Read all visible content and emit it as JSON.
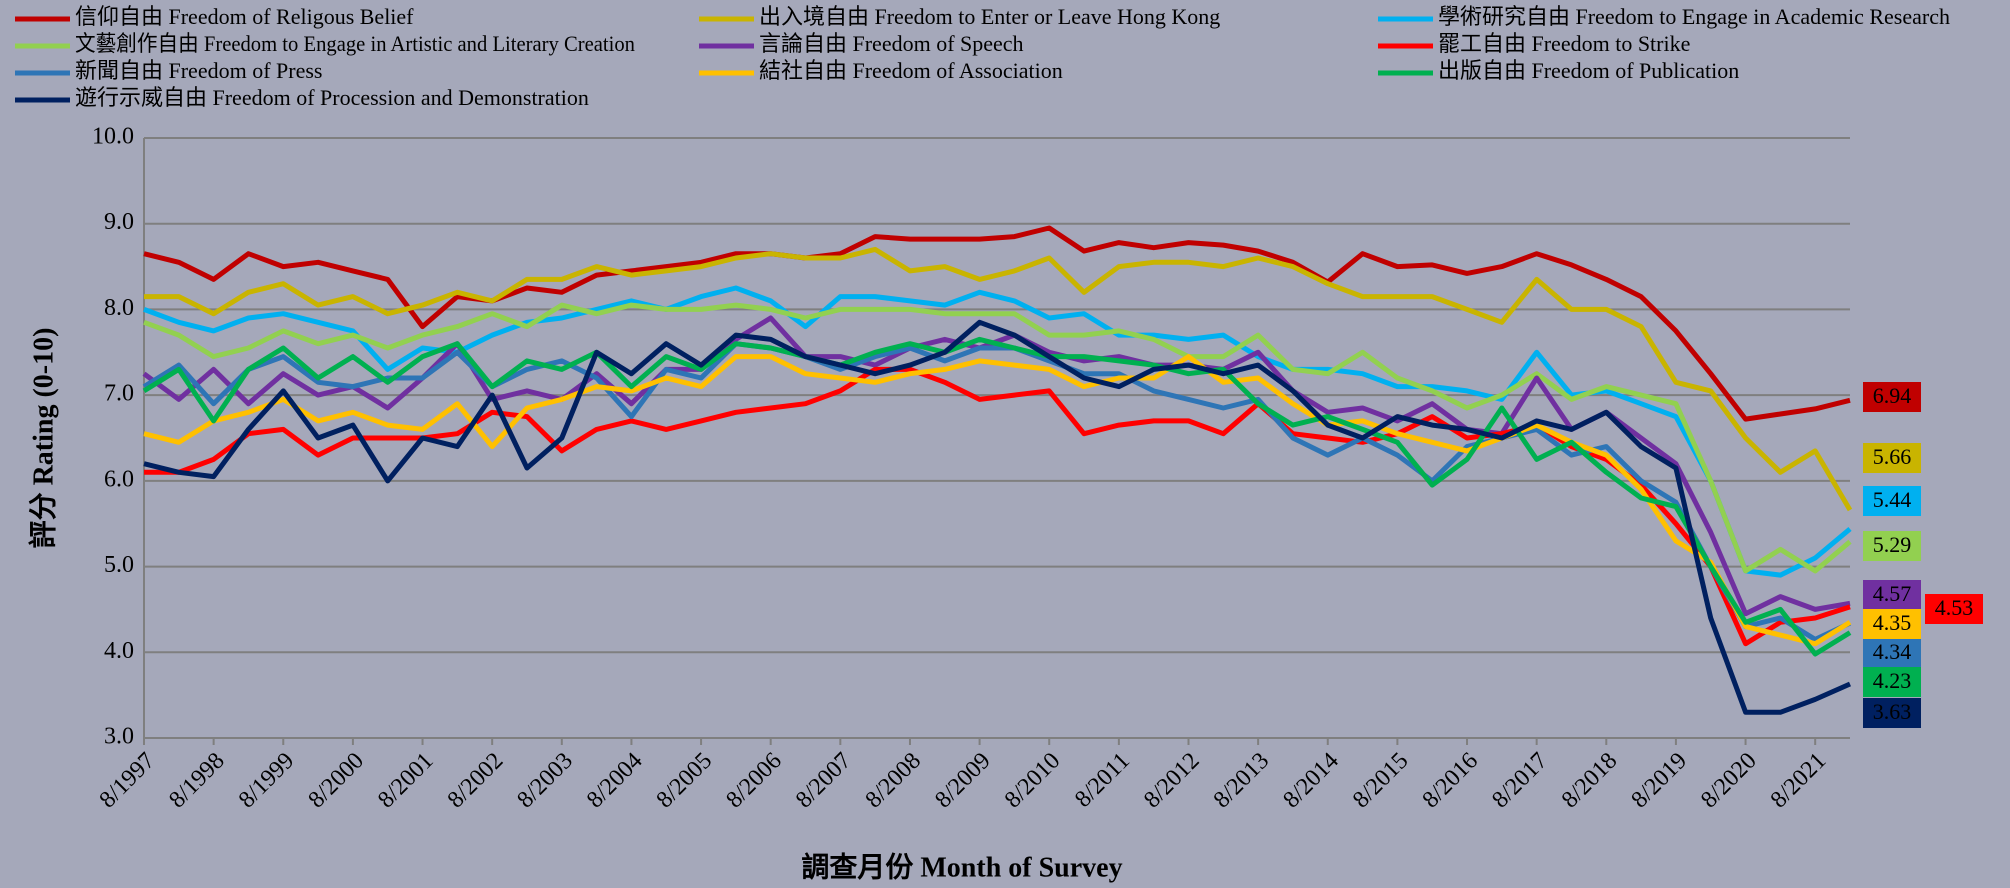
{
  "chart_data": {
    "type": "line",
    "y_label": "評分 Rating (0-10)",
    "x_label": "調查月份 Month of Survey",
    "categories": [
      "8/1997",
      null,
      "8/1998",
      null,
      "8/1999",
      null,
      "8/2000",
      null,
      "8/2001",
      null,
      "8/2002",
      null,
      "8/2003",
      null,
      "8/2004",
      null,
      "8/2005",
      null,
      "8/2006",
      null,
      "8/2007",
      null,
      "8/2008",
      null,
      "8/2009",
      null,
      "8/2010",
      null,
      "8/2011",
      null,
      "8/2012",
      null,
      "8/2013",
      null,
      "8/2014",
      null,
      "8/2015",
      null,
      "8/2016",
      null,
      "8/2017",
      null,
      "8/2018",
      null,
      "8/2019",
      null,
      "8/2020",
      null,
      "8/2021",
      null
    ],
    "ylim": [
      3,
      10
    ],
    "yticks": [
      {
        "value": 3,
        "label": "3.0"
      },
      {
        "value": 4,
        "label": "4.0"
      },
      {
        "value": 5,
        "label": "5.0"
      },
      {
        "value": 6,
        "label": "6.0"
      },
      {
        "value": 7,
        "label": "7.0"
      },
      {
        "value": 8,
        "label": "8.0"
      },
      {
        "value": 9,
        "label": "9.0"
      },
      {
        "value": 10,
        "label": "10.0"
      }
    ],
    "grid": true,
    "series": [
      {
        "name": "信仰自由 Freedom of Religous Belief",
        "color": "#c00000",
        "values": [
          8.65,
          8.55,
          8.35,
          8.65,
          8.5,
          8.55,
          8.45,
          8.35,
          7.8,
          8.15,
          8.1,
          8.25,
          8.2,
          8.4,
          8.45,
          8.5,
          8.55,
          8.65,
          8.65,
          8.6,
          8.65,
          8.85,
          8.82,
          8.82,
          8.82,
          8.85,
          8.95,
          8.68,
          8.78,
          8.72,
          8.78,
          8.75,
          8.68,
          8.55,
          8.32,
          8.65,
          8.5,
          8.52,
          8.42,
          8.5,
          8.65,
          8.52,
          8.35,
          8.15,
          7.75,
          7.25,
          6.72,
          6.78,
          6.84,
          6.94
        ]
      },
      {
        "name": "出入境自由 Freedom to Enter or Leave Hong Kong",
        "color": "#c9b400",
        "values": [
          8.15,
          8.15,
          7.95,
          8.2,
          8.3,
          8.05,
          8.15,
          7.95,
          8.05,
          8.2,
          8.1,
          8.35,
          8.35,
          8.5,
          8.4,
          8.45,
          8.5,
          8.6,
          8.65,
          8.6,
          8.6,
          8.7,
          8.45,
          8.5,
          8.35,
          8.45,
          8.6,
          8.2,
          8.5,
          8.55,
          8.55,
          8.5,
          8.6,
          8.5,
          8.3,
          8.15,
          8.15,
          8.15,
          8.0,
          7.85,
          8.35,
          8.0,
          8.0,
          7.8,
          7.15,
          7.05,
          6.5,
          6.1,
          6.35,
          5.66
        ]
      },
      {
        "name": "學術研究自由 Freedom to Engage in Academic Research",
        "color": "#00b0f0",
        "values": [
          8.0,
          7.85,
          7.75,
          7.9,
          7.95,
          7.85,
          7.75,
          7.3,
          7.55,
          7.5,
          7.7,
          7.85,
          7.9,
          8.0,
          8.1,
          8.0,
          8.15,
          8.25,
          8.1,
          7.8,
          8.15,
          8.15,
          8.1,
          8.05,
          8.2,
          8.1,
          7.9,
          7.95,
          7.7,
          7.7,
          7.65,
          7.7,
          7.45,
          7.3,
          7.3,
          7.25,
          7.1,
          7.1,
          7.05,
          6.95,
          7.5,
          7.0,
          7.05,
          6.9,
          6.75,
          6.0,
          4.95,
          4.9,
          5.1,
          5.44
        ]
      },
      {
        "name": "文藝創作自由 Freedom to Engage in Artistic and Literary Creation",
        "color": "#92d050",
        "values": [
          7.85,
          7.7,
          7.45,
          7.55,
          7.75,
          7.6,
          7.7,
          7.55,
          7.7,
          7.8,
          7.95,
          7.8,
          8.05,
          7.95,
          8.05,
          8.0,
          8.0,
          8.05,
          8.0,
          7.9,
          8.0,
          8.0,
          8.0,
          7.95,
          7.95,
          7.95,
          7.7,
          7.7,
          7.75,
          7.65,
          7.45,
          7.45,
          7.7,
          7.3,
          7.25,
          7.5,
          7.2,
          7.05,
          6.85,
          7.0,
          7.25,
          6.95,
          7.1,
          7.0,
          6.9,
          6.0,
          4.95,
          5.2,
          4.95,
          5.29
        ]
      },
      {
        "name": "言論自由 Freedom of Speech",
        "color": "#7030a0",
        "values": [
          7.25,
          6.95,
          7.3,
          6.9,
          7.25,
          7.0,
          7.1,
          6.85,
          7.2,
          7.6,
          6.95,
          7.05,
          6.95,
          7.25,
          6.9,
          7.3,
          7.3,
          7.65,
          7.9,
          7.45,
          7.45,
          7.35,
          7.55,
          7.65,
          7.55,
          7.7,
          7.5,
          7.4,
          7.45,
          7.35,
          7.35,
          7.3,
          7.5,
          7.05,
          6.8,
          6.85,
          6.7,
          6.9,
          6.6,
          6.55,
          7.2,
          6.6,
          6.8,
          6.5,
          6.2,
          5.4,
          4.45,
          4.65,
          4.5,
          4.57
        ]
      },
      {
        "name": "罷工自由 Freedom to Strike",
        "color": "#ff0000",
        "values": [
          6.1,
          6.1,
          6.25,
          6.55,
          6.6,
          6.3,
          6.5,
          6.5,
          6.5,
          6.55,
          6.8,
          6.75,
          6.35,
          6.6,
          6.7,
          6.6,
          6.7,
          6.8,
          6.85,
          6.9,
          7.05,
          7.3,
          7.3,
          7.15,
          6.95,
          7.0,
          7.05,
          6.55,
          6.65,
          6.7,
          6.7,
          6.55,
          6.9,
          6.55,
          6.5,
          6.45,
          6.55,
          6.75,
          6.5,
          6.55,
          6.65,
          6.4,
          6.25,
          5.95,
          5.5,
          5.0,
          4.1,
          4.35,
          4.4,
          4.53
        ]
      },
      {
        "name": "新聞自由 Freedom of Press",
        "color": "#2e75b6",
        "values": [
          7.1,
          7.35,
          6.9,
          7.3,
          7.45,
          7.15,
          7.1,
          7.2,
          7.2,
          7.5,
          7.1,
          7.3,
          7.4,
          7.2,
          6.75,
          7.3,
          7.2,
          7.6,
          7.55,
          7.45,
          7.3,
          7.45,
          7.55,
          7.4,
          7.55,
          7.55,
          7.4,
          7.25,
          7.25,
          7.05,
          6.95,
          6.85,
          6.95,
          6.5,
          6.3,
          6.5,
          6.3,
          6.0,
          6.4,
          6.5,
          6.6,
          6.3,
          6.4,
          6.0,
          5.75,
          5.0,
          4.3,
          4.4,
          4.15,
          4.34
        ]
      },
      {
        "name": "結社自由 Freedom of Association",
        "color": "#ffc000",
        "values": [
          6.55,
          6.45,
          6.7,
          6.8,
          6.95,
          6.7,
          6.8,
          6.65,
          6.6,
          6.9,
          6.4,
          6.85,
          6.95,
          7.1,
          7.05,
          7.2,
          7.1,
          7.45,
          7.45,
          7.25,
          7.2,
          7.15,
          7.25,
          7.3,
          7.4,
          7.35,
          7.3,
          7.1,
          7.2,
          7.2,
          7.45,
          7.15,
          7.2,
          6.9,
          6.65,
          6.7,
          6.55,
          6.45,
          6.35,
          6.5,
          6.65,
          6.45,
          6.3,
          5.9,
          5.3,
          5.05,
          4.3,
          4.2,
          4.1,
          4.35
        ]
      },
      {
        "name": "出版自由 Freedom of Publication",
        "color": "#00b050",
        "values": [
          7.05,
          7.3,
          6.7,
          7.3,
          7.55,
          7.2,
          7.45,
          7.15,
          7.45,
          7.6,
          7.1,
          7.4,
          7.3,
          7.5,
          7.1,
          7.45,
          7.3,
          7.6,
          7.55,
          7.45,
          7.35,
          7.5,
          7.6,
          7.5,
          7.65,
          7.55,
          7.45,
          7.45,
          7.4,
          7.35,
          7.25,
          7.3,
          6.9,
          6.65,
          6.75,
          6.6,
          6.45,
          5.95,
          6.25,
          6.85,
          6.25,
          6.45,
          6.1,
          5.8,
          5.7,
          5.0,
          4.35,
          4.5,
          3.98,
          4.23
        ]
      },
      {
        "name": "遊行示威自由 Freedom of Procession and Demonstration",
        "color": "#002060",
        "values": [
          6.2,
          6.1,
          6.05,
          6.6,
          7.05,
          6.5,
          6.65,
          6.0,
          6.5,
          6.4,
          7.0,
          6.15,
          6.5,
          7.5,
          7.25,
          7.6,
          7.35,
          7.7,
          7.65,
          7.45,
          7.35,
          7.25,
          7.35,
          7.5,
          7.85,
          7.7,
          7.45,
          7.2,
          7.1,
          7.3,
          7.35,
          7.25,
          7.35,
          7.05,
          6.65,
          6.5,
          6.75,
          6.65,
          6.6,
          6.5,
          6.7,
          6.6,
          6.8,
          6.4,
          6.15,
          4.4,
          3.3,
          3.3,
          3.45,
          3.63
        ]
      }
    ]
  }
}
